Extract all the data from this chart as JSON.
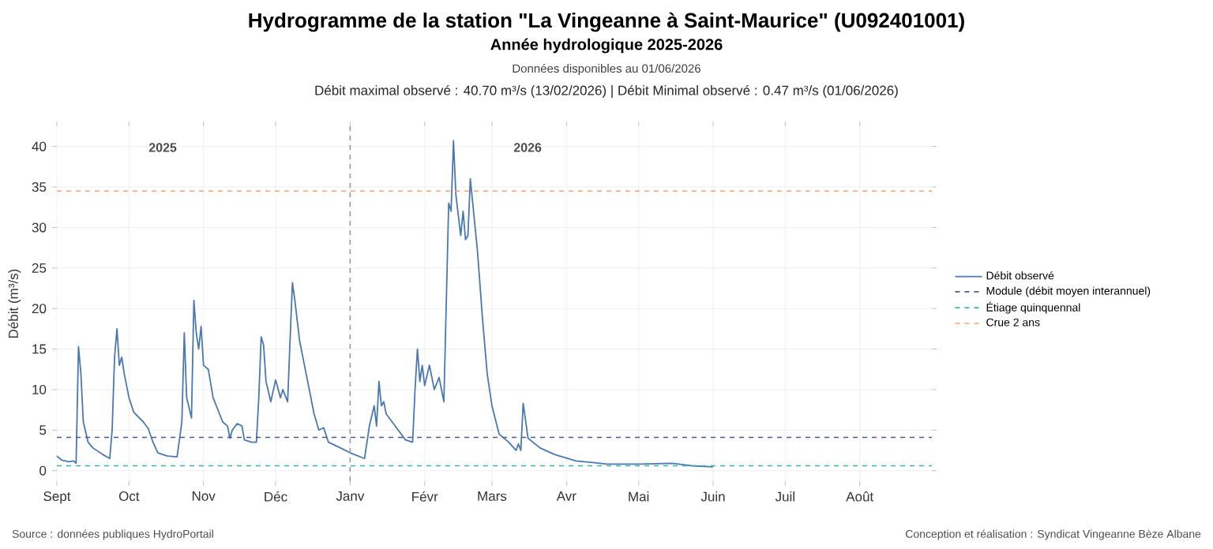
{
  "chart_data": {
    "type": "line",
    "title": "Hydrogramme de la station \"La Vingeanne à Saint-Maurice\" (U092401001)",
    "subtitle": "Année hydrologique 2025-2026",
    "ylabel": "Débit (m³/s)",
    "x": [
      "2025-09-01",
      "2025-09-03",
      "2025-09-06",
      "2025-09-08",
      "2025-09-09",
      "2025-09-10",
      "2025-09-11",
      "2025-09-12",
      "2025-09-14",
      "2025-09-16",
      "2025-09-20",
      "2025-09-23",
      "2025-09-24",
      "2025-09-25",
      "2025-09-26",
      "2025-09-27",
      "2025-09-28",
      "2025-09-29",
      "2025-10-01",
      "2025-10-03",
      "2025-10-07",
      "2025-10-09",
      "2025-10-11",
      "2025-10-13",
      "2025-10-17",
      "2025-10-21",
      "2025-10-23",
      "2025-10-24",
      "2025-10-25",
      "2025-10-27",
      "2025-10-28",
      "2025-10-29",
      "2025-10-30",
      "2025-10-31",
      "2025-11-01",
      "2025-11-03",
      "2025-11-05",
      "2025-11-09",
      "2025-11-11",
      "2025-11-12",
      "2025-11-13",
      "2025-11-15",
      "2025-11-17",
      "2025-11-18",
      "2025-11-21",
      "2025-11-23",
      "2025-11-24",
      "2025-11-25",
      "2025-11-26",
      "2025-11-27",
      "2025-11-29",
      "2025-12-01",
      "2025-12-03",
      "2025-12-04",
      "2025-12-06",
      "2025-12-07",
      "2025-12-08",
      "2025-12-09",
      "2025-12-11",
      "2025-12-13",
      "2025-12-15",
      "2025-12-17",
      "2025-12-19",
      "2025-12-21",
      "2025-12-23",
      "2025-12-28",
      "2026-01-01",
      "2026-01-07",
      "2026-01-09",
      "2026-01-11",
      "2026-01-12",
      "2026-01-13",
      "2026-01-14",
      "2026-01-15",
      "2026-01-16",
      "2026-01-21",
      "2026-01-24",
      "2026-01-27",
      "2026-01-28",
      "2026-01-29",
      "2026-01-30",
      "2026-01-31",
      "2026-02-01",
      "2026-02-03",
      "2026-02-05",
      "2026-02-07",
      "2026-02-09",
      "2026-02-11",
      "2026-02-12",
      "2026-02-13",
      "2026-02-14",
      "2026-02-16",
      "2026-02-17",
      "2026-02-18",
      "2026-02-19",
      "2026-02-20",
      "2026-02-21",
      "2026-02-23",
      "2026-02-25",
      "2026-02-27",
      "2026-03-01",
      "2026-03-04",
      "2026-03-08",
      "2026-03-11",
      "2026-03-12",
      "2026-03-13",
      "2026-03-14",
      "2026-03-16",
      "2026-03-21",
      "2026-03-27",
      "2026-04-05",
      "2026-04-12",
      "2026-04-18",
      "2026-05-01",
      "2026-05-15",
      "2026-05-23",
      "2026-06-01"
    ],
    "series": [
      {
        "name": "Débit observé",
        "color": "#4a78b0",
        "values": [
          1.8,
          1.3,
          1.1,
          1.2,
          0.9,
          15.3,
          12,
          6,
          3.5,
          2.8,
          2.0,
          1.5,
          5,
          14,
          17.5,
          13,
          14,
          12,
          9,
          7.2,
          6,
          5.2,
          3.5,
          2.2,
          1.8,
          1.7,
          6,
          17,
          9,
          6.5,
          21,
          17,
          15,
          17.8,
          13,
          12.5,
          9,
          6,
          5.5,
          4,
          5,
          5.8,
          5.5,
          3.8,
          3.5,
          3.5,
          9,
          16.5,
          15.5,
          11,
          8.5,
          11.2,
          9,
          10,
          8.5,
          16,
          23.2,
          21,
          16,
          13,
          10,
          7,
          5,
          5.3,
          3.5,
          2.8,
          2.2,
          1.5,
          5.5,
          8,
          5.5,
          11,
          8,
          8.5,
          7,
          5,
          3.8,
          3.5,
          10,
          15,
          11,
          13,
          10.5,
          13,
          10,
          11.5,
          8.5,
          33,
          32,
          40.7,
          34,
          29,
          32,
          28.5,
          29,
          36,
          33,
          27,
          19,
          12,
          8,
          4.5,
          3.5,
          2.5,
          3.3,
          2.5,
          8.3,
          4,
          2.8,
          2,
          1.2,
          1.0,
          0.8,
          0.8,
          0.9,
          0.6,
          0.47
        ]
      }
    ],
    "xlim": [
      "2025-09-01",
      "2026-08-31"
    ],
    "xticks": [
      {
        "value": "2025-09-01",
        "label": "Sept"
      },
      {
        "value": "2025-10-01",
        "label": "Oct"
      },
      {
        "value": "2025-11-01",
        "label": "Nov"
      },
      {
        "value": "2025-12-01",
        "label": "Déc"
      },
      {
        "value": "2026-01-01",
        "label": "Janv"
      },
      {
        "value": "2026-02-01",
        "label": "Févr"
      },
      {
        "value": "2026-03-01",
        "label": "Mars"
      },
      {
        "value": "2026-04-01",
        "label": "Avr"
      },
      {
        "value": "2026-05-01",
        "label": "Mai"
      },
      {
        "value": "2026-06-01",
        "label": "Juin"
      },
      {
        "value": "2026-07-01",
        "label": "Juil"
      },
      {
        "value": "2026-08-01",
        "label": "Août"
      }
    ],
    "ylim": [
      -1.3,
      42.5
    ],
    "yticks": [
      0,
      5,
      10,
      15,
      20,
      25,
      30,
      35,
      40
    ],
    "ref_lines": [
      {
        "axis": "x",
        "value": "2026-01-01",
        "color": "#999999",
        "line_style": "dashed"
      },
      {
        "axis": "y",
        "value": 4.1,
        "label": "Module (débit moyen interannuel)",
        "color": "#4b5a86",
        "line_style": "dashed"
      },
      {
        "axis": "y",
        "value": 0.6,
        "label": "Étiage quinquennal",
        "color": "#3bb5a0",
        "line_style": "dashed"
      },
      {
        "axis": "y",
        "value": 34.5,
        "label": "Crue 2 ans",
        "color": "#f5a372",
        "line_style": "dashed"
      }
    ],
    "annotations": [
      "Données disponibles au 01/06/2026",
      "Débit maximal observé : 40.70 m³/s (13/02/2026)    |    Débit Minimal observé : 0.47 m³/s (01/06/2026)",
      "Source : données publiques HydroPortail",
      "Conception et réalisation : Syndicat Vingeanne Bèze Albane",
      "2025",
      "2026"
    ],
    "grid": true,
    "legend": "right",
    "line_style": "solid"
  }
}
